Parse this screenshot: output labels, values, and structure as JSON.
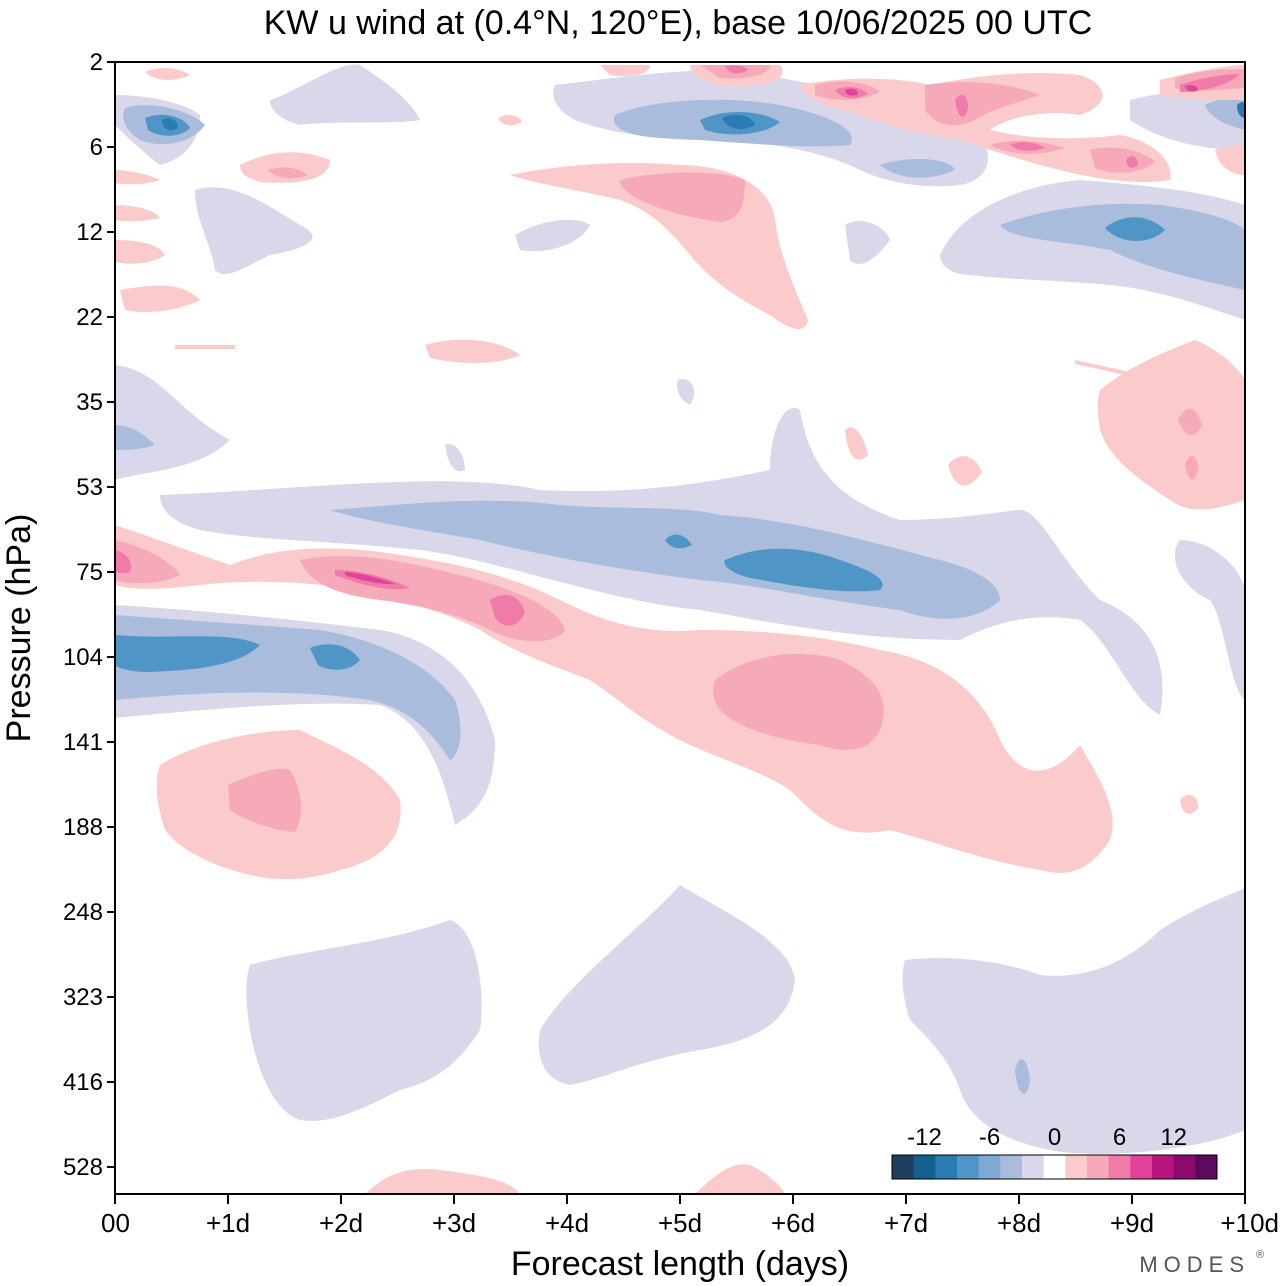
{
  "chart_data": {
    "type": "filled-contour",
    "title": "KW u wind at (0.4°N, 120°E),  base 10/06/2025  00 UTC",
    "xlabel": "Forecast length (days)",
    "ylabel": "Pressure (hPa)",
    "xlim": [
      0,
      10
    ],
    "x_ticks": [
      {
        "value": 0,
        "label": "00"
      },
      {
        "value": 1,
        "label": "+1d"
      },
      {
        "value": 2,
        "label": "+2d"
      },
      {
        "value": 3,
        "label": "+3d"
      },
      {
        "value": 4,
        "label": "+4d"
      },
      {
        "value": 5,
        "label": "+5d"
      },
      {
        "value": 6,
        "label": "+6d"
      },
      {
        "value": 7,
        "label": "+7d"
      },
      {
        "value": 8,
        "label": "+8d"
      },
      {
        "value": 9,
        "label": "+9d"
      },
      {
        "value": 10,
        "label": "+10d"
      }
    ],
    "y_ticks": [
      "2",
      "6",
      "12",
      "22",
      "35",
      "53",
      "75",
      "104",
      "141",
      "188",
      "248",
      "323",
      "416",
      "528"
    ],
    "y_axis": "pressure decreasing upward (top 2 hPa, bottom near 660 hPa)",
    "colorbar": {
      "position": "bottom-right inside plot",
      "labels": [
        "-12",
        "-6",
        "0",
        "6",
        "12"
      ],
      "colors": [
        "#1f3f5e",
        "#155f8e",
        "#2a7bb2",
        "#4f96c6",
        "#7fa9d2",
        "#a9bcdc",
        "#d8d8ea",
        "#ffffff",
        "#fbcaca",
        "#f6a9b8",
        "#f07aa8",
        "#e0439a",
        "#b8147f",
        "#8c0a6f",
        "#5c0a5c"
      ]
    },
    "features": [
      {
        "sign": "negative",
        "level": -9,
        "x_range_days": [
          0.0,
          3.0
        ],
        "pressure_hPa": 104,
        "note": "easterly band"
      },
      {
        "sign": "positive",
        "level": 9,
        "x_range_days": [
          0.0,
          4.0
        ],
        "pressure_hPa": 75,
        "note": "westerly band"
      },
      {
        "sign": "negative",
        "level": -9,
        "x_range_days": [
          3.0,
          8.0
        ],
        "pressure_hPa": 60,
        "note": "descending easterly band"
      },
      {
        "sign": "positive",
        "level": 6,
        "x_range_days": [
          4.0,
          9.0
        ],
        "pressure_hPa": 141,
        "note": "descending westerly band"
      },
      {
        "sign": "positive",
        "level": 6,
        "x_range_days": [
          0.5,
          2.5
        ],
        "pressure_hPa": 170
      },
      {
        "sign": "negative",
        "level": -3,
        "x_range_days": [
          1.2,
          3.2
        ],
        "pressure_hPa": 380
      },
      {
        "sign": "negative",
        "level": -3,
        "x_range_days": [
          3.8,
          6.0
        ],
        "pressure_hPa": 350
      },
      {
        "sign": "negative",
        "level": -3,
        "x_range_days": [
          7.0,
          10.0
        ],
        "pressure_hPa": 400
      },
      {
        "sign": "positive",
        "level": 6,
        "x_range_days": [
          4.5,
          6.0
        ],
        "pressure_hPa": 9
      },
      {
        "sign": "negative",
        "level": -9,
        "x_range_days": [
          8.0,
          10.0
        ],
        "pressure_hPa": 13
      },
      {
        "sign": "negative",
        "level": -9,
        "x_range_days": [
          4.5,
          6.5
        ],
        "pressure_hPa": 5
      },
      {
        "sign": "positive",
        "level": 12,
        "x_range_days": [
          6.0,
          10.0
        ],
        "pressure_hPa": 4
      },
      {
        "sign": "negative",
        "level": -9,
        "x_range_days": [
          0.0,
          1.0
        ],
        "pressure_hPa": 5
      },
      {
        "sign": "positive",
        "level": 6,
        "x_range_days": [
          9.0,
          10.0
        ],
        "pressure_hPa": 42
      }
    ]
  },
  "branding": "MODES"
}
